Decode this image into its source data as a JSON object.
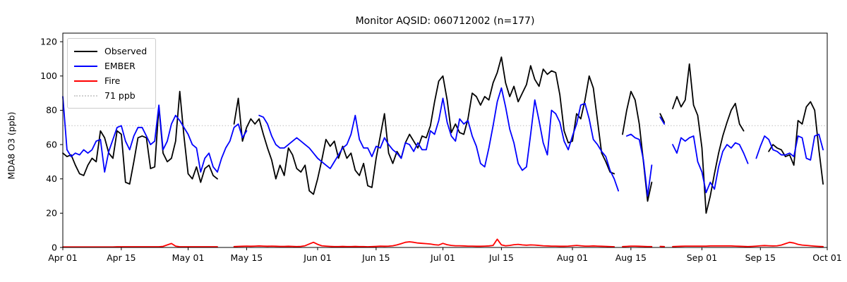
{
  "title": "Monitor AQSID: 060712002 (n=177)",
  "y_axis": {
    "label": "MDA8 O3 (ppb)",
    "ticks": [
      0,
      20,
      40,
      60,
      80,
      100,
      120
    ],
    "max": 125
  },
  "x_axis": {
    "tick_labels": [
      "Apr 01",
      "Apr 15",
      "May 01",
      "May 15",
      "Jun 01",
      "Jun 15",
      "Jul 01",
      "Jul 15",
      "Aug 01",
      "Aug 15",
      "Sep 01",
      "Sep 15",
      "Oct 01"
    ],
    "tick_days": [
      0,
      14,
      30,
      44,
      61,
      75,
      91,
      105,
      122,
      136,
      153,
      167,
      183
    ],
    "total_days": 183
  },
  "threshold": {
    "value": 71,
    "label": "71 ppb",
    "color": "#cfcfcf"
  },
  "legend": [
    {
      "label": "Observed",
      "color": "#000000",
      "style": "solid"
    },
    {
      "label": "EMBER",
      "color": "#0000ff",
      "style": "solid"
    },
    {
      "label": "Fire",
      "color": "#ff0000",
      "style": "solid"
    },
    {
      "label": "71 ppb",
      "color": "#cfcfcf",
      "style": "dotted"
    }
  ],
  "chart_data": {
    "type": "line",
    "title": "Monitor AQSID: 060712002 (n=177)",
    "xlabel": "",
    "ylabel": "MDA8 O3 (ppb)",
    "ylim": [
      0,
      125
    ],
    "x_unit": "days since Apr 01",
    "x_start": "Apr 01",
    "x_end": "Oct 01",
    "grid": "off",
    "legend_position": "upper left",
    "threshold_value": 71,
    "n_label": 177,
    "series": [
      {
        "name": "Observed",
        "color": "#000000",
        "values": [
          55,
          53,
          54,
          48,
          43,
          42,
          48,
          52,
          50,
          68,
          64,
          55,
          52,
          68,
          66,
          38,
          37,
          50,
          64,
          65,
          64,
          46,
          47,
          82,
          55,
          50,
          52,
          62,
          91,
          65,
          43,
          40,
          47,
          38,
          46,
          48,
          42,
          40,
          null,
          null,
          null,
          72,
          87,
          62,
          70,
          75,
          72,
          75,
          66,
          58,
          51,
          40,
          48,
          42,
          58,
          54,
          46,
          44,
          48,
          33,
          31,
          40,
          51,
          63,
          59,
          62,
          52,
          59,
          52,
          55,
          45,
          42,
          49,
          36,
          35,
          52,
          65,
          78,
          55,
          49,
          56,
          52,
          61,
          66,
          62,
          58,
          65,
          64,
          71,
          85,
          97,
          100,
          86,
          67,
          72,
          67,
          66,
          75,
          90,
          88,
          83,
          88,
          86,
          96,
          102,
          111,
          96,
          88,
          94,
          85,
          90,
          95,
          106,
          98,
          94,
          104,
          101,
          103,
          102,
          89,
          68,
          61,
          62,
          78,
          75,
          86,
          100,
          93,
          74,
          55,
          50,
          44,
          43,
          null,
          66,
          80,
          91,
          86,
          72,
          50,
          27,
          38,
          null,
          78,
          73,
          null,
          81,
          88,
          82,
          86,
          107,
          83,
          77,
          58,
          20,
          30,
          43,
          55,
          65,
          73,
          80,
          84,
          72,
          68,
          null,
          null,
          null,
          null,
          null,
          56,
          60,
          58,
          57,
          53,
          54,
          48,
          74,
          72,
          82,
          85,
          80,
          57,
          37
        ]
      },
      {
        "name": "EMBER",
        "color": "#0000ff",
        "values": [
          88,
          57,
          53,
          55,
          54,
          57,
          55,
          57,
          62,
          63,
          44,
          56,
          63,
          70,
          71,
          62,
          57,
          65,
          70,
          70,
          65,
          60,
          62,
          83,
          57,
          62,
          72,
          77,
          74,
          70,
          66,
          60,
          58,
          44,
          52,
          55,
          47,
          44,
          52,
          58,
          62,
          70,
          72,
          64,
          68,
          null,
          null,
          77,
          76,
          72,
          65,
          60,
          58,
          58,
          60,
          62,
          64,
          62,
          60,
          58,
          55,
          52,
          50,
          48,
          46,
          50,
          54,
          58,
          60,
          66,
          77,
          63,
          58,
          58,
          53,
          59,
          58,
          64,
          60,
          57,
          55,
          52,
          61,
          60,
          56,
          61,
          57,
          57,
          68,
          66,
          74,
          87,
          73,
          65,
          62,
          75,
          72,
          74,
          65,
          59,
          49,
          47,
          58,
          71,
          85,
          93,
          82,
          69,
          61,
          49,
          45,
          47,
          66,
          86,
          74,
          61,
          54,
          80,
          78,
          73,
          62,
          57,
          65,
          72,
          83,
          84,
          75,
          63,
          60,
          56,
          53,
          45,
          40,
          33,
          null,
          65,
          66,
          64,
          63,
          51,
          30,
          48,
          null,
          76,
          72,
          null,
          60,
          55,
          64,
          62,
          64,
          65,
          50,
          44,
          32,
          38,
          34,
          47,
          56,
          60,
          58,
          61,
          60,
          55,
          49,
          null,
          52,
          59,
          65,
          63,
          57,
          56,
          54,
          54,
          55,
          53,
          65,
          64,
          52,
          51,
          65,
          66,
          57
        ]
      },
      {
        "name": "Fire",
        "color": "#ff0000",
        "values": [
          0.3,
          0.3,
          0.3,
          0.3,
          0.3,
          0.3,
          0.3,
          0.3,
          0.3,
          0.3,
          0.3,
          0.3,
          0.3,
          0.4,
          0.4,
          0.4,
          0.4,
          0.4,
          0.4,
          0.4,
          0.4,
          0.4,
          0.4,
          0.4,
          0.6,
          1.5,
          2.3,
          0.8,
          0.4,
          0.4,
          0.4,
          0.4,
          0.4,
          0.4,
          0.4,
          0.4,
          0.4,
          0.4,
          null,
          null,
          null,
          0.5,
          0.6,
          0.7,
          0.8,
          0.7,
          0.8,
          0.9,
          0.8,
          0.7,
          0.8,
          0.7,
          0.6,
          0.6,
          0.7,
          0.6,
          0.5,
          0.6,
          1.0,
          2.0,
          3.0,
          1.8,
          1.0,
          0.8,
          0.6,
          0.5,
          0.5,
          0.6,
          0.5,
          0.5,
          0.6,
          0.5,
          0.5,
          0.4,
          0.5,
          0.6,
          0.8,
          0.7,
          0.8,
          1.0,
          1.5,
          2.2,
          3.0,
          3.3,
          3.0,
          2.6,
          2.4,
          2.2,
          2.0,
          1.6,
          1.4,
          2.4,
          1.6,
          1.2,
          1.0,
          1.0,
          0.9,
          0.8,
          0.8,
          0.7,
          0.7,
          0.8,
          0.9,
          1.2,
          4.8,
          1.5,
          1.0,
          1.2,
          1.6,
          1.8,
          1.5,
          1.3,
          1.5,
          1.4,
          1.2,
          1.0,
          0.9,
          0.8,
          0.8,
          0.7,
          0.7,
          0.8,
          1.0,
          1.2,
          1.0,
          0.8,
          0.8,
          0.9,
          0.8,
          0.7,
          0.6,
          0.5,
          0.4,
          null,
          0.5,
          0.6,
          0.8,
          0.8,
          0.7,
          0.6,
          0.5,
          0.5,
          null,
          0.6,
          0.5,
          null,
          0.5,
          0.6,
          0.7,
          0.8,
          0.8,
          0.8,
          0.8,
          0.8,
          0.8,
          0.9,
          0.9,
          0.9,
          0.9,
          0.9,
          0.9,
          0.8,
          0.7,
          0.6,
          0.5,
          0.6,
          0.8,
          1.0,
          1.1,
          1.0,
          0.9,
          1.0,
          1.4,
          2.2,
          3.0,
          2.6,
          1.8,
          1.4,
          1.2,
          1.0,
          0.8,
          0.6,
          0.5
        ]
      }
    ]
  }
}
